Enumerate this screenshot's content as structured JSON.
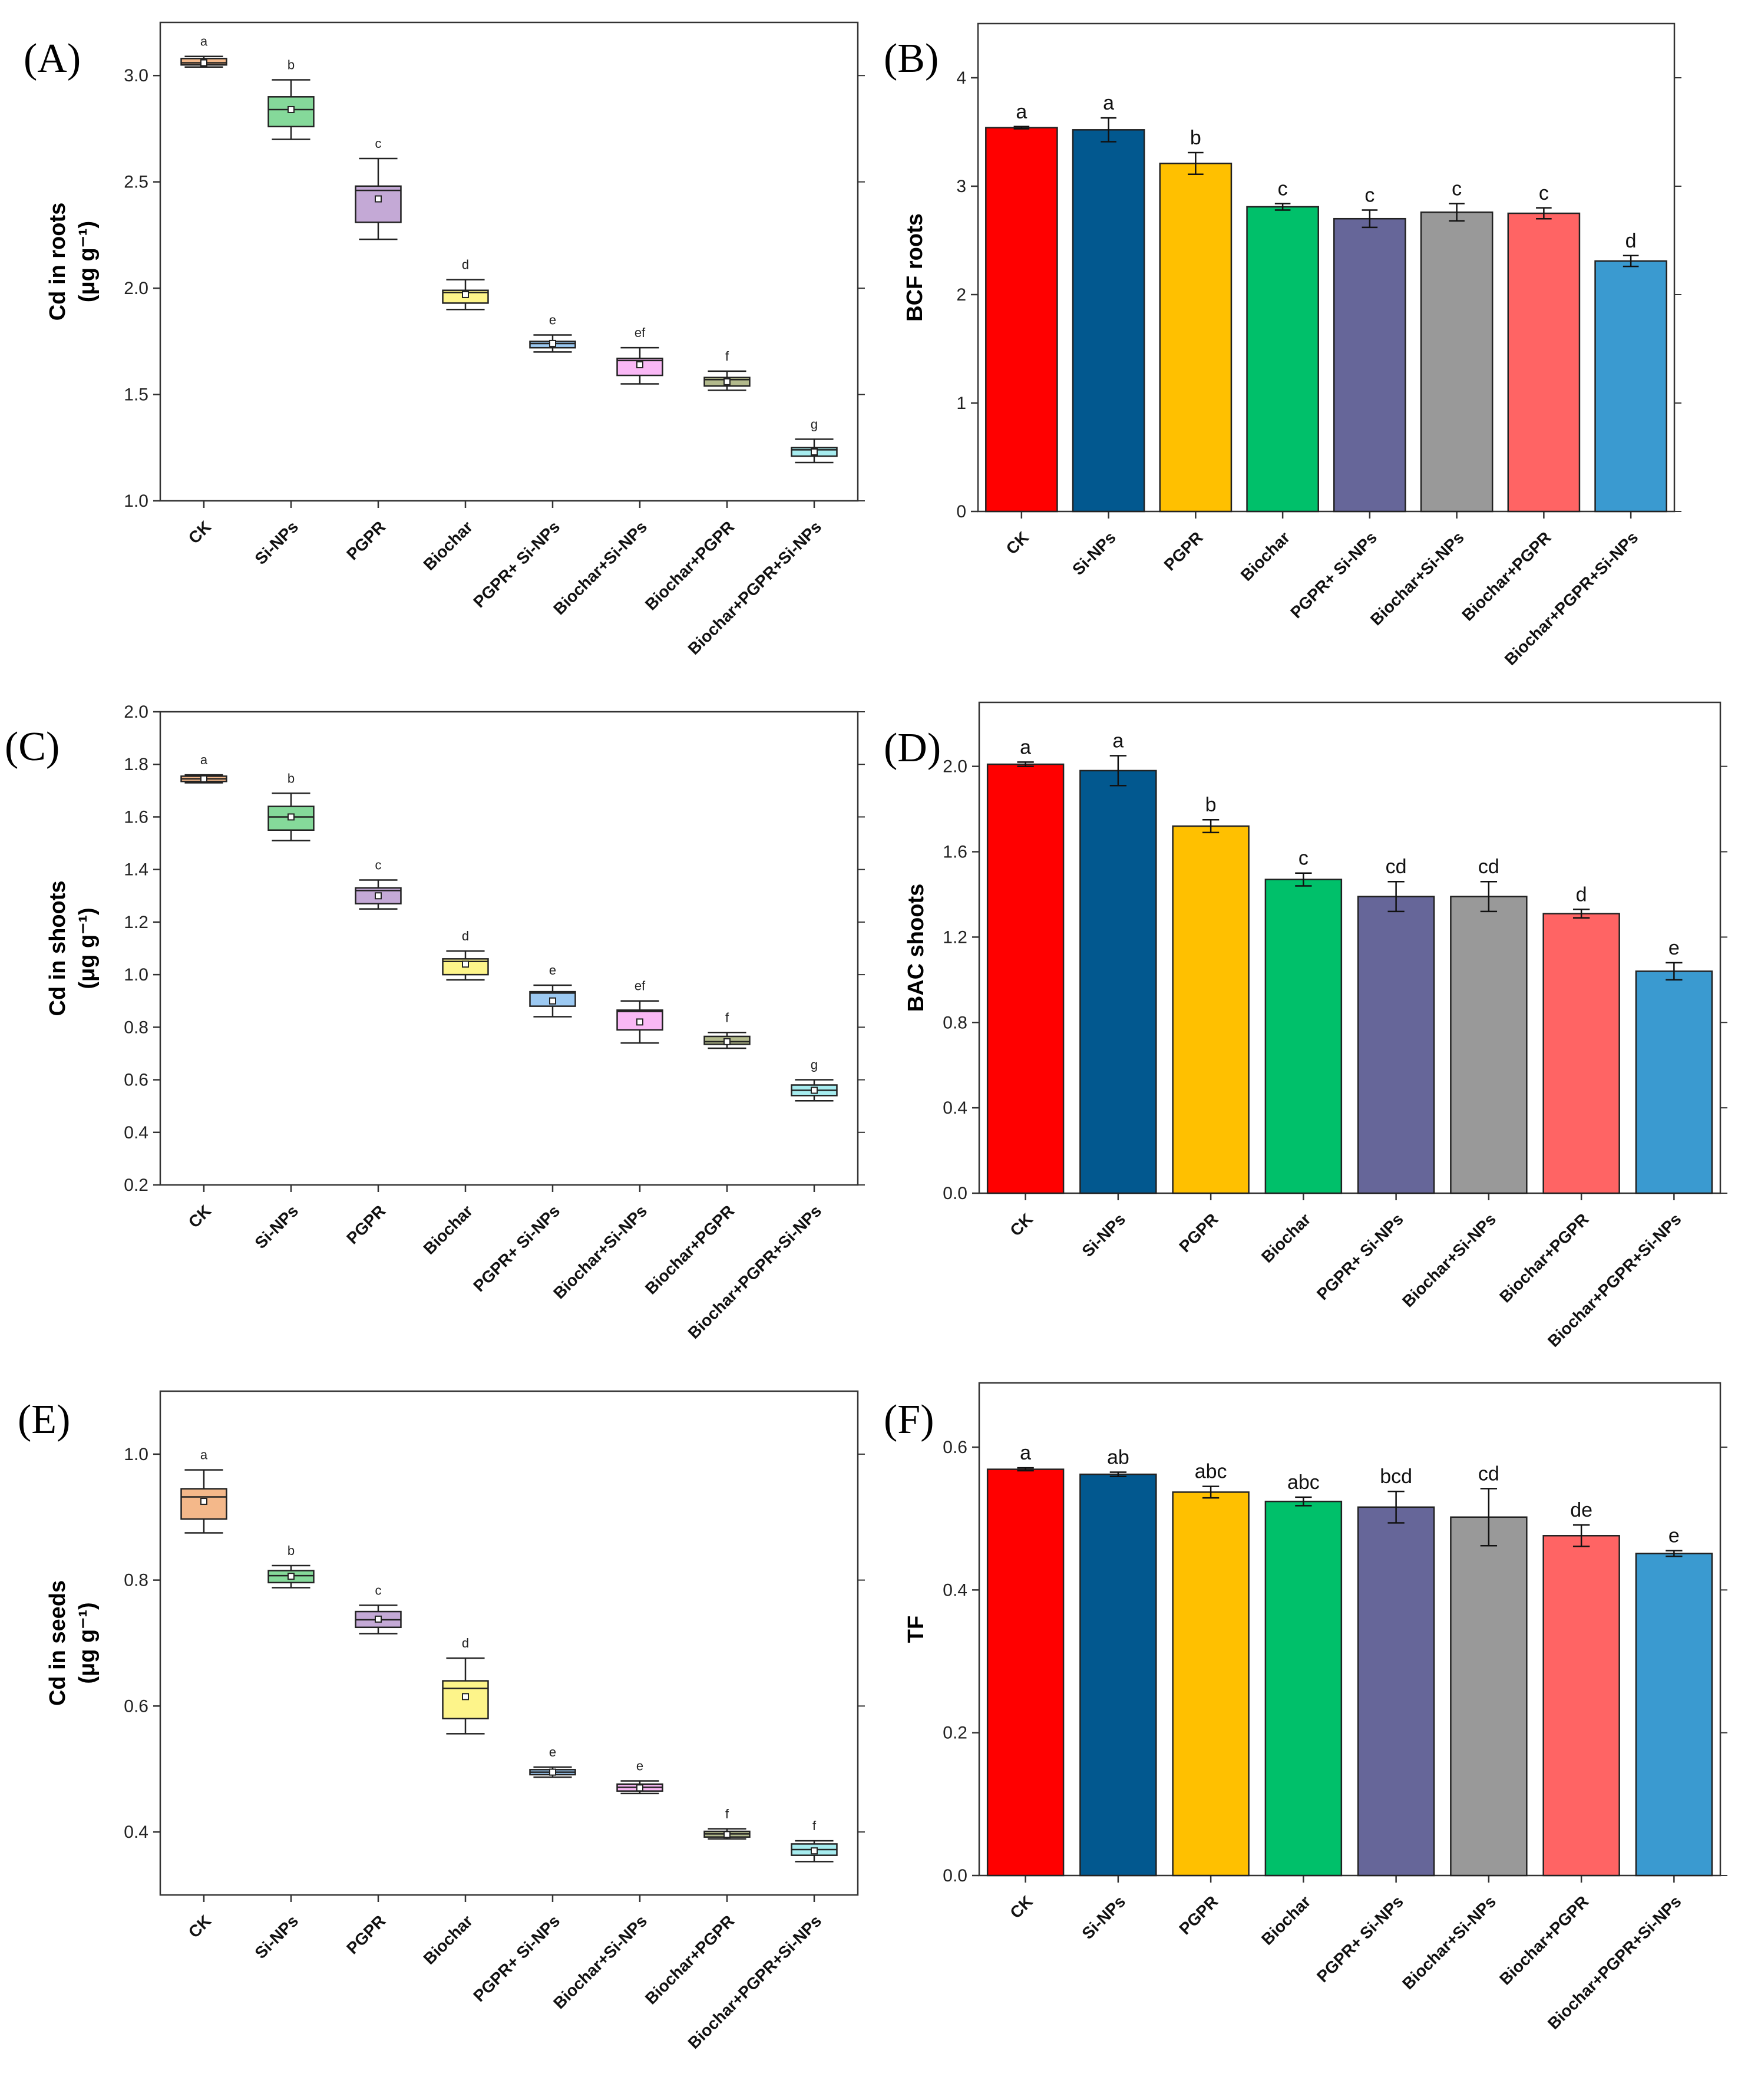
{
  "figure": {
    "background": "#ffffff"
  },
  "categories": [
    "CK",
    "Si-NPs",
    "PGPR",
    "Biochar",
    "PGPR+ Si-NPs",
    "Biochar+Si-NPs",
    "Biochar+PGPR",
    "Biochar+PGPR+Si-NPs"
  ],
  "chart_data": [
    {
      "id": "A",
      "panel_label": "(A)",
      "type": "box",
      "ylabel_line1": "Cd in roots",
      "ylabel_line2": "(μg g⁻¹)",
      "ylim": [
        1.0,
        3.25
      ],
      "yticks": [
        "1.0",
        "1.5",
        "2.0",
        "2.5",
        "3.0"
      ],
      "series": [
        {
          "name": "CK",
          "q1": 3.05,
          "median": 3.06,
          "q3": 3.08,
          "min": 3.04,
          "max": 3.09,
          "mean": 3.06,
          "sig": "a",
          "color": "#f4b88a"
        },
        {
          "name": "Si-NPs",
          "q1": 2.76,
          "median": 2.84,
          "q3": 2.9,
          "min": 2.7,
          "max": 2.98,
          "mean": 2.84,
          "sig": "b",
          "color": "#85d99a"
        },
        {
          "name": "PGPR",
          "q1": 2.31,
          "median": 2.46,
          "q3": 2.48,
          "min": 2.23,
          "max": 2.61,
          "mean": 2.42,
          "sig": "c",
          "color": "#c4a9d6"
        },
        {
          "name": "Biochar",
          "q1": 1.93,
          "median": 1.98,
          "q3": 1.99,
          "min": 1.9,
          "max": 2.04,
          "mean": 1.97,
          "sig": "d",
          "color": "#fdf48a"
        },
        {
          "name": "PGPR+ Si-NPs",
          "q1": 1.72,
          "median": 1.74,
          "q3": 1.75,
          "min": 1.7,
          "max": 1.78,
          "mean": 1.74,
          "sig": "e",
          "color": "#9cc9f2"
        },
        {
          "name": "Biochar+Si-NPs",
          "q1": 1.59,
          "median": 1.66,
          "q3": 1.67,
          "min": 1.55,
          "max": 1.72,
          "mean": 1.64,
          "sig": "ef",
          "color": "#f9b8f5"
        },
        {
          "name": "Biochar+PGPR",
          "q1": 1.54,
          "median": 1.57,
          "q3": 1.58,
          "min": 1.52,
          "max": 1.61,
          "mean": 1.56,
          "sig": "f",
          "color": "#b2b98c"
        },
        {
          "name": "Biochar+PGPR+Si-NPs",
          "q1": 1.21,
          "median": 1.24,
          "q3": 1.25,
          "min": 1.18,
          "max": 1.29,
          "mean": 1.23,
          "sig": "g",
          "color": "#a6ecef"
        }
      ]
    },
    {
      "id": "B",
      "panel_label": "(B)",
      "type": "bar",
      "ylabel_line1": "BCF roots",
      "ylabel_line2": "",
      "ylim": [
        0,
        4.5
      ],
      "yticks": [
        "0",
        "1",
        "2",
        "3",
        "4"
      ],
      "values": [
        3.54,
        3.52,
        3.21,
        2.81,
        2.7,
        2.76,
        2.75,
        2.31
      ],
      "errors": [
        0.01,
        0.11,
        0.1,
        0.03,
        0.08,
        0.08,
        0.05,
        0.05
      ],
      "sig": [
        "a",
        "a",
        "b",
        "c",
        "c",
        "c",
        "c",
        "d"
      ]
    },
    {
      "id": "C",
      "panel_label": "(C)",
      "type": "box",
      "ylabel_line1": "Cd in shoots",
      "ylabel_line2": "(μg g⁻¹)",
      "ylim": [
        0.2,
        2.0
      ],
      "yticks": [
        "0.2",
        "0.4",
        "0.6",
        "0.8",
        "1.0",
        "1.2",
        "1.4",
        "1.6",
        "1.8",
        "2.0"
      ],
      "series": [
        {
          "name": "CK",
          "q1": 1.735,
          "median": 1.745,
          "q3": 1.755,
          "min": 1.73,
          "max": 1.76,
          "mean": 1.745,
          "sig": "a",
          "color": "#f4b88a"
        },
        {
          "name": "Si-NPs",
          "q1": 1.55,
          "median": 1.6,
          "q3": 1.64,
          "min": 1.51,
          "max": 1.69,
          "mean": 1.6,
          "sig": "b",
          "color": "#85d99a"
        },
        {
          "name": "PGPR",
          "q1": 1.27,
          "median": 1.32,
          "q3": 1.33,
          "min": 1.25,
          "max": 1.36,
          "mean": 1.3,
          "sig": "c",
          "color": "#c4a9d6"
        },
        {
          "name": "Biochar",
          "q1": 1.0,
          "median": 1.05,
          "q3": 1.06,
          "min": 0.98,
          "max": 1.09,
          "mean": 1.04,
          "sig": "d",
          "color": "#fdf48a"
        },
        {
          "name": "PGPR+ Si-NPs",
          "q1": 0.88,
          "median": 0.93,
          "q3": 0.935,
          "min": 0.84,
          "max": 0.96,
          "mean": 0.9,
          "sig": "e",
          "color": "#9cc9f2"
        },
        {
          "name": "Biochar+Si-NPs",
          "q1": 0.79,
          "median": 0.86,
          "q3": 0.865,
          "min": 0.74,
          "max": 0.9,
          "mean": 0.82,
          "sig": "ef",
          "color": "#f9b8f5"
        },
        {
          "name": "Biochar+PGPR",
          "q1": 0.735,
          "median": 0.745,
          "q3": 0.765,
          "min": 0.72,
          "max": 0.78,
          "mean": 0.745,
          "sig": "f",
          "color": "#b2b98c"
        },
        {
          "name": "Biochar+PGPR+Si-NPs",
          "q1": 0.54,
          "median": 0.56,
          "q3": 0.58,
          "min": 0.52,
          "max": 0.6,
          "mean": 0.56,
          "sig": "g",
          "color": "#a6ecef"
        }
      ]
    },
    {
      "id": "D",
      "panel_label": "(D)",
      "type": "bar",
      "ylabel_line1": "BAC shoots",
      "ylabel_line2": "",
      "ylim": [
        0,
        2.3
      ],
      "yticks": [
        "0.0",
        "0.4",
        "0.8",
        "1.2",
        "1.6",
        "2.0"
      ],
      "values": [
        2.01,
        1.98,
        1.72,
        1.47,
        1.39,
        1.39,
        1.31,
        1.04
      ],
      "errors": [
        0.01,
        0.07,
        0.03,
        0.03,
        0.07,
        0.07,
        0.02,
        0.04
      ],
      "sig": [
        "a",
        "a",
        "b",
        "c",
        "cd",
        "cd",
        "d",
        "e"
      ]
    },
    {
      "id": "E",
      "panel_label": "(E)",
      "type": "box",
      "ylabel_line1": "Cd in seeds",
      "ylabel_line2": "(μg g⁻¹)",
      "ylim": [
        0.3,
        1.1
      ],
      "yticks": [
        "0.4",
        "0.6",
        "0.8",
        "1.0"
      ],
      "series": [
        {
          "name": "CK",
          "q1": 0.897,
          "median": 0.932,
          "q3": 0.945,
          "min": 0.875,
          "max": 0.975,
          "mean": 0.925,
          "sig": "a",
          "color": "#f4b88a"
        },
        {
          "name": "Si-NPs",
          "q1": 0.796,
          "median": 0.807,
          "q3": 0.815,
          "min": 0.788,
          "max": 0.823,
          "mean": 0.806,
          "sig": "b",
          "color": "#85d99a"
        },
        {
          "name": "PGPR",
          "q1": 0.725,
          "median": 0.737,
          "q3": 0.75,
          "min": 0.715,
          "max": 0.76,
          "mean": 0.738,
          "sig": "c",
          "color": "#c4a9d6"
        },
        {
          "name": "Biochar",
          "q1": 0.58,
          "median": 0.628,
          "q3": 0.64,
          "min": 0.556,
          "max": 0.676,
          "mean": 0.615,
          "sig": "d",
          "color": "#fdf48a"
        },
        {
          "name": "PGPR+ Si-NPs",
          "q1": 0.491,
          "median": 0.495,
          "q3": 0.499,
          "min": 0.487,
          "max": 0.503,
          "mean": 0.495,
          "sig": "e",
          "color": "#9cc9f2"
        },
        {
          "name": "Biochar+Si-NPs",
          "q1": 0.465,
          "median": 0.471,
          "q3": 0.476,
          "min": 0.461,
          "max": 0.481,
          "mean": 0.47,
          "sig": "e",
          "color": "#f9b8f5"
        },
        {
          "name": "Biochar+PGPR",
          "q1": 0.392,
          "median": 0.397,
          "q3": 0.401,
          "min": 0.389,
          "max": 0.405,
          "mean": 0.396,
          "sig": "f",
          "color": "#b2b98c"
        },
        {
          "name": "Biochar+PGPR+Si-NPs",
          "q1": 0.363,
          "median": 0.372,
          "q3": 0.381,
          "min": 0.353,
          "max": 0.386,
          "mean": 0.37,
          "sig": "f",
          "color": "#a6ecef"
        }
      ]
    },
    {
      "id": "F",
      "panel_label": "(F)",
      "type": "bar",
      "ylabel_line1": "TF",
      "ylabel_line2": "",
      "ylim": [
        0,
        0.69
      ],
      "yticks": [
        "0.0",
        "0.2",
        "0.4",
        "0.6"
      ],
      "values": [
        0.569,
        0.562,
        0.537,
        0.524,
        0.516,
        0.502,
        0.476,
        0.451
      ],
      "errors": [
        0.002,
        0.003,
        0.008,
        0.006,
        0.022,
        0.04,
        0.015,
        0.004
      ],
      "sig": [
        "a",
        "ab",
        "abc",
        "abc",
        "bcd",
        "cd",
        "de",
        "e"
      ]
    }
  ],
  "bar_colors": [
    "#ff0000",
    "#02588f",
    "#ffc000",
    "#00c06a",
    "#666699",
    "#999999",
    "#ff6464",
    "#3a9ad0"
  ]
}
